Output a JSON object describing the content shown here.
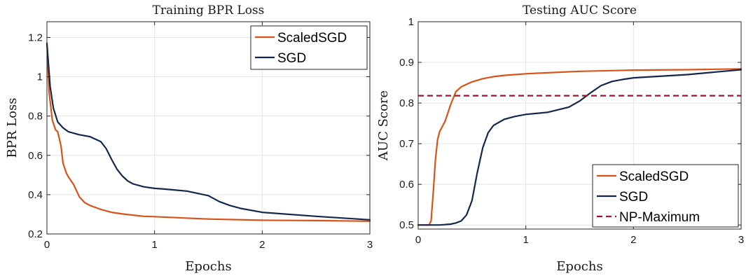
{
  "chart_data": [
    {
      "type": "line",
      "title": "Training BPR Loss",
      "xlabel": "Epochs",
      "ylabel": "BPR Loss",
      "xlim": [
        0,
        3
      ],
      "ylim": [
        0.2,
        1.28
      ],
      "xticks": [
        0,
        1,
        2,
        3
      ],
      "yticks": [
        0.2,
        0.4,
        0.6,
        0.8,
        1,
        1.2
      ],
      "grid": true,
      "legend_position": "top-right",
      "series": [
        {
          "name": "ScaledSGD",
          "color": "#d95319",
          "x": [
            0,
            0.02,
            0.05,
            0.08,
            0.1,
            0.13,
            0.15,
            0.18,
            0.2,
            0.25,
            0.3,
            0.35,
            0.4,
            0.5,
            0.6,
            0.7,
            0.8,
            0.9,
            1,
            1.2,
            1.5,
            2,
            2.5,
            3
          ],
          "y": [
            1.17,
            0.92,
            0.78,
            0.73,
            0.72,
            0.65,
            0.56,
            0.51,
            0.49,
            0.45,
            0.39,
            0.36,
            0.345,
            0.325,
            0.31,
            0.302,
            0.296,
            0.29,
            0.288,
            0.283,
            0.276,
            0.27,
            0.268,
            0.265
          ]
        },
        {
          "name": "SGD",
          "color": "#14284c",
          "x": [
            0,
            0.03,
            0.06,
            0.1,
            0.15,
            0.2,
            0.3,
            0.4,
            0.5,
            0.55,
            0.6,
            0.65,
            0.7,
            0.75,
            0.8,
            0.9,
            1,
            1.1,
            1.3,
            1.5,
            1.6,
            1.7,
            1.8,
            2,
            2.5,
            3
          ],
          "y": [
            1.17,
            0.95,
            0.84,
            0.77,
            0.74,
            0.72,
            0.705,
            0.695,
            0.67,
            0.635,
            0.58,
            0.53,
            0.495,
            0.47,
            0.455,
            0.44,
            0.432,
            0.428,
            0.418,
            0.395,
            0.365,
            0.345,
            0.33,
            0.31,
            0.29,
            0.272
          ]
        }
      ]
    },
    {
      "type": "line",
      "title": "Testing AUC Score",
      "xlabel": "Epochs",
      "ylabel": "AUC Score",
      "xlim": [
        0,
        3
      ],
      "ylim": [
        0.49,
        1
      ],
      "xticks": [
        0,
        1,
        2,
        3
      ],
      "yticks": [
        0.5,
        0.6,
        0.7,
        0.8,
        0.9,
        1
      ],
      "grid": true,
      "legend_position": "bottom-right",
      "series": [
        {
          "name": "ScaledSGD",
          "color": "#d95319",
          "dash": "solid",
          "x": [
            0,
            0.1,
            0.12,
            0.14,
            0.16,
            0.18,
            0.2,
            0.25,
            0.3,
            0.35,
            0.4,
            0.5,
            0.6,
            0.7,
            0.8,
            1,
            1.5,
            2,
            2.5,
            3
          ],
          "y": [
            0.5,
            0.5,
            0.51,
            0.58,
            0.66,
            0.71,
            0.73,
            0.755,
            0.795,
            0.828,
            0.84,
            0.852,
            0.86,
            0.865,
            0.868,
            0.872,
            0.878,
            0.881,
            0.882,
            0.884
          ]
        },
        {
          "name": "SGD",
          "color": "#14284c",
          "dash": "solid",
          "x": [
            0,
            0.2,
            0.3,
            0.35,
            0.4,
            0.45,
            0.5,
            0.55,
            0.6,
            0.65,
            0.7,
            0.8,
            0.9,
            1,
            1.2,
            1.4,
            1.5,
            1.6,
            1.7,
            1.8,
            1.9,
            2,
            2.5,
            3
          ],
          "y": [
            0.5,
            0.5,
            0.502,
            0.505,
            0.51,
            0.525,
            0.56,
            0.63,
            0.69,
            0.727,
            0.745,
            0.76,
            0.767,
            0.772,
            0.777,
            0.79,
            0.805,
            0.825,
            0.843,
            0.853,
            0.858,
            0.862,
            0.87,
            0.882
          ]
        },
        {
          "name": "NP-Maximum",
          "color": "#a2142f",
          "dash": "dashed",
          "x": [
            0,
            3
          ],
          "y": [
            0.818,
            0.818
          ]
        }
      ]
    }
  ]
}
